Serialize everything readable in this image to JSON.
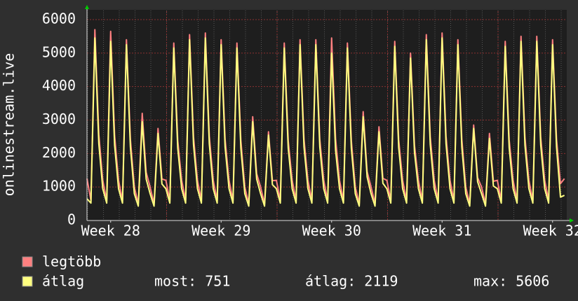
{
  "chart_data": {
    "type": "line",
    "y_label": "onlinestream.live",
    "x": [
      2,
      2.25,
      2.5,
      2.75,
      3,
      3.25,
      3.5,
      3.75,
      4,
      4.25,
      4.5,
      4.75,
      5,
      5.25,
      5.5,
      5.75,
      6,
      6.25,
      6.5,
      6.75,
      7,
      7.25,
      7.5,
      7.75,
      8,
      8.25,
      8.5,
      8.75,
      9,
      9.25,
      9.5,
      9.75,
      10,
      10.25,
      10.5,
      10.75,
      11,
      11.25,
      11.5,
      11.75,
      12,
      12.25,
      12.5,
      12.75,
      13,
      13.25,
      13.5,
      13.75,
      14,
      14.25,
      14.5,
      14.75,
      15,
      15.25,
      15.5,
      15.75,
      16,
      16.25,
      16.5,
      16.75,
      17,
      17.25,
      17.5,
      17.75,
      18,
      18.25,
      18.5,
      18.75,
      19,
      19.25,
      19.5,
      19.75,
      20,
      20.25,
      20.5,
      20.75,
      21,
      21.25,
      21.5,
      21.75,
      22,
      22.25,
      22.5,
      22.75,
      23,
      23.25,
      23.5,
      23.75,
      24,
      24.25,
      24.5,
      24.75,
      25,
      25.25,
      25.5,
      25.75,
      26,
      26.25,
      26.5,
      26.75,
      27,
      27.25,
      27.5,
      27.75,
      28,
      28.25,
      28.5,
      28.75,
      29,
      29.25,
      29.5,
      29.75,
      30,
      30.25,
      30.5,
      30.75,
      31,
      31.25,
      31.5,
      31.75,
      32,
      32.25
    ],
    "series": [
      {
        "name": "legtöbb",
        "color": "#ff8080",
        "values": [
          1250,
          600,
          5700,
          2570,
          1200,
          600,
          5650,
          2540,
          1200,
          600,
          5400,
          2430,
          1000,
          500,
          3200,
          1440,
          1000,
          500,
          2750,
          1240,
          1200,
          600,
          5300,
          2390,
          1200,
          600,
          5550,
          2500,
          1200,
          600,
          5600,
          2520,
          1200,
          600,
          5400,
          2430,
          1200,
          600,
          5300,
          2390,
          1000,
          500,
          3100,
          1400,
          1000,
          500,
          2650,
          1190,
          1200,
          600,
          5300,
          2390,
          1200,
          600,
          5400,
          2430,
          1200,
          600,
          5400,
          2430,
          1200,
          600,
          5450,
          2450,
          1200,
          600,
          5300,
          2390,
          1000,
          500,
          3250,
          1460,
          1000,
          500,
          2800,
          1260,
          1200,
          600,
          5350,
          2410,
          1200,
          600,
          5000,
          2250,
          1200,
          600,
          5550,
          2500,
          1200,
          600,
          5600,
          2520,
          1200,
          600,
          5400,
          2430,
          1000,
          500,
          2850,
          1280,
          1000,
          500,
          2600,
          1170,
          1200,
          600,
          5350,
          2410,
          1200,
          600,
          5500,
          2480,
          1200,
          600,
          5500,
          2480,
          1200,
          600,
          5400,
          2430,
          1100,
          1250
        ]
      },
      {
        "name": "átlag",
        "color": "#ffff80",
        "values": [
          650,
          520,
          5450,
          2290,
          950,
          520,
          5350,
          2250,
          950,
          520,
          5250,
          2200,
          800,
          430,
          2950,
          1240,
          800,
          430,
          2600,
          1090,
          950,
          520,
          5150,
          2160,
          950,
          520,
          5400,
          2270,
          950,
          520,
          5450,
          2290,
          950,
          520,
          5250,
          2200,
          950,
          520,
          5150,
          2160,
          800,
          430,
          2950,
          1240,
          800,
          430,
          2550,
          1070,
          950,
          520,
          5150,
          2160,
          950,
          520,
          5250,
          2200,
          950,
          520,
          5250,
          2200,
          950,
          520,
          5000,
          2100,
          950,
          520,
          5150,
          2160,
          800,
          430,
          3100,
          1300,
          800,
          430,
          2650,
          1110,
          950,
          520,
          5200,
          2180,
          950,
          520,
          4850,
          2040,
          950,
          520,
          5400,
          2270,
          950,
          520,
          5450,
          2290,
          950,
          520,
          5250,
          2200,
          800,
          430,
          2750,
          1160,
          800,
          430,
          2450,
          1030,
          950,
          520,
          5200,
          2180,
          950,
          520,
          5350,
          2250,
          950,
          520,
          5350,
          2250,
          950,
          520,
          5250,
          2200,
          700,
          751
        ]
      }
    ],
    "stats": [
      "most: 751",
      "átlag: 2119",
      "max: 5606"
    ],
    "xlim": [
      2,
      32.4
    ],
    "xticks": [
      {
        "value": 3.5,
        "label": "Week 28"
      },
      {
        "value": 10.5,
        "label": "Week 29"
      },
      {
        "value": 17.5,
        "label": "Week 30"
      },
      {
        "value": 24.5,
        "label": "Week 31"
      },
      {
        "value": 31.5,
        "label": "Week 32"
      }
    ],
    "ylim": [
      0,
      6000
    ],
    "yticks": [
      0,
      1000,
      2000,
      3000,
      4000,
      5000,
      6000
    ],
    "grid": true
  }
}
